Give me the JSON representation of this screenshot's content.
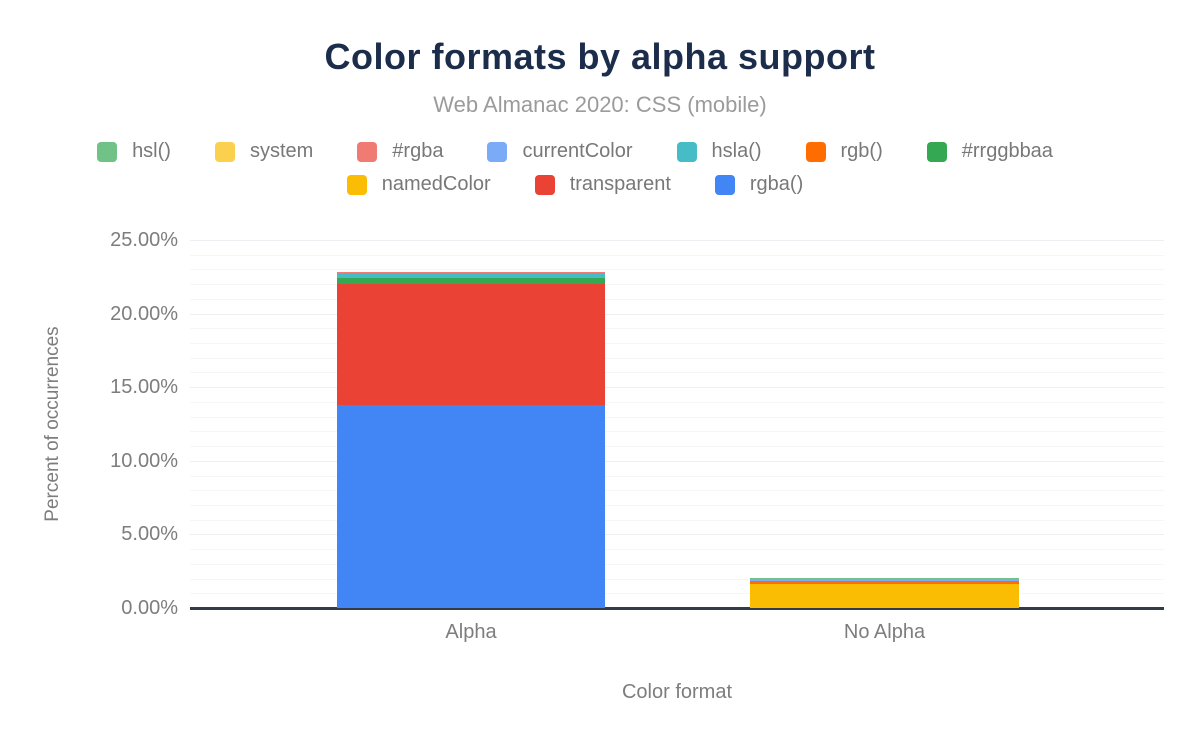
{
  "header": {
    "title": "Color formats by alpha support",
    "subtitle": "Web Almanac 2020: CSS (mobile)"
  },
  "legend": {
    "rows": [
      [
        "hsl()",
        "system",
        "#rgba",
        "currentColor",
        "hsla()",
        "rgb()",
        "#rrggbbaa"
      ],
      [
        "namedColor",
        "transparent",
        "rgba()"
      ]
    ]
  },
  "chart_data": {
    "type": "bar",
    "stacked": true,
    "title": "Color formats by alpha support",
    "subtitle": "Web Almanac 2020: CSS (mobile)",
    "xlabel": "Color format",
    "ylabel": "Percent of occurrences",
    "categories": [
      "Alpha",
      "No Alpha"
    ],
    "series_stack_order": "bottom-to-top",
    "series": [
      {
        "name": "rgba()",
        "color": "#4285f4",
        "values": [
          13.82,
          0
        ]
      },
      {
        "name": "transparent",
        "color": "#ea4335",
        "values": [
          8.18,
          0
        ]
      },
      {
        "name": "namedColor",
        "color": "#fbbc04",
        "values": [
          0,
          1.63
        ]
      },
      {
        "name": "#rrggbbaa",
        "color": "#34a853",
        "values": [
          0.41,
          0
        ]
      },
      {
        "name": "rgb()",
        "color": "#ff6d01",
        "values": [
          0,
          0.2
        ]
      },
      {
        "name": "hsla()",
        "color": "#46bdc6",
        "values": [
          0.37,
          0
        ]
      },
      {
        "name": "currentColor",
        "color": "#7baaf7",
        "values": [
          0,
          0.14
        ]
      },
      {
        "name": "#rgba",
        "color": "#f07b72",
        "values": [
          0.07,
          0
        ]
      },
      {
        "name": "system",
        "color": "#fcd04f",
        "values": [
          0,
          0.02
        ]
      },
      {
        "name": "hsl()",
        "color": "#71c287",
        "values": [
          0,
          0.02
        ]
      }
    ],
    "ylim": [
      0,
      25
    ],
    "yticks": [
      {
        "value": 0,
        "label": "0.00%"
      },
      {
        "value": 5,
        "label": "5.00%"
      },
      {
        "value": 10,
        "label": "10.00%"
      },
      {
        "value": 15,
        "label": "15.00%"
      },
      {
        "value": 20,
        "label": "20.00%"
      },
      {
        "value": 25,
        "label": "25.00%"
      }
    ],
    "grid": true,
    "minor_grid_step_pct": 1,
    "legend_position": "top"
  }
}
